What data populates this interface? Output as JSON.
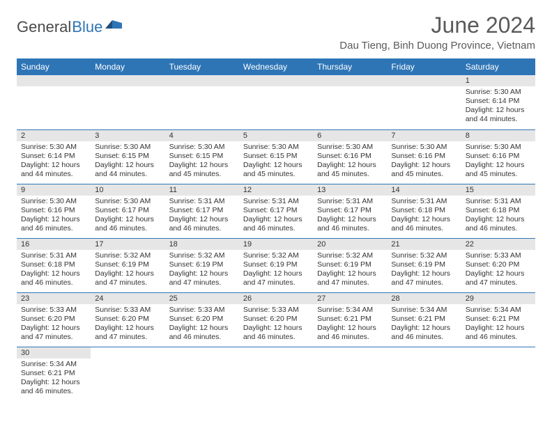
{
  "brand": {
    "part1": "General",
    "part2": "Blue"
  },
  "title": "June 2024",
  "location": "Dau Tieng, Binh Duong Province, Vietnam",
  "colors": {
    "header_bg": "#2e75b6",
    "header_text": "#ffffff",
    "daynum_bg": "#e6e6e6",
    "cell_border": "#2e75b6",
    "text": "#333333",
    "title_text": "#5a5a5a"
  },
  "weekdays": [
    "Sunday",
    "Monday",
    "Tuesday",
    "Wednesday",
    "Thursday",
    "Friday",
    "Saturday"
  ],
  "weeks": [
    [
      null,
      null,
      null,
      null,
      null,
      null,
      {
        "n": "1",
        "sr": "Sunrise: 5:30 AM",
        "ss": "Sunset: 6:14 PM",
        "dl": "Daylight: 12 hours and 44 minutes."
      }
    ],
    [
      {
        "n": "2",
        "sr": "Sunrise: 5:30 AM",
        "ss": "Sunset: 6:14 PM",
        "dl": "Daylight: 12 hours and 44 minutes."
      },
      {
        "n": "3",
        "sr": "Sunrise: 5:30 AM",
        "ss": "Sunset: 6:15 PM",
        "dl": "Daylight: 12 hours and 44 minutes."
      },
      {
        "n": "4",
        "sr": "Sunrise: 5:30 AM",
        "ss": "Sunset: 6:15 PM",
        "dl": "Daylight: 12 hours and 45 minutes."
      },
      {
        "n": "5",
        "sr": "Sunrise: 5:30 AM",
        "ss": "Sunset: 6:15 PM",
        "dl": "Daylight: 12 hours and 45 minutes."
      },
      {
        "n": "6",
        "sr": "Sunrise: 5:30 AM",
        "ss": "Sunset: 6:16 PM",
        "dl": "Daylight: 12 hours and 45 minutes."
      },
      {
        "n": "7",
        "sr": "Sunrise: 5:30 AM",
        "ss": "Sunset: 6:16 PM",
        "dl": "Daylight: 12 hours and 45 minutes."
      },
      {
        "n": "8",
        "sr": "Sunrise: 5:30 AM",
        "ss": "Sunset: 6:16 PM",
        "dl": "Daylight: 12 hours and 45 minutes."
      }
    ],
    [
      {
        "n": "9",
        "sr": "Sunrise: 5:30 AM",
        "ss": "Sunset: 6:16 PM",
        "dl": "Daylight: 12 hours and 46 minutes."
      },
      {
        "n": "10",
        "sr": "Sunrise: 5:30 AM",
        "ss": "Sunset: 6:17 PM",
        "dl": "Daylight: 12 hours and 46 minutes."
      },
      {
        "n": "11",
        "sr": "Sunrise: 5:31 AM",
        "ss": "Sunset: 6:17 PM",
        "dl": "Daylight: 12 hours and 46 minutes."
      },
      {
        "n": "12",
        "sr": "Sunrise: 5:31 AM",
        "ss": "Sunset: 6:17 PM",
        "dl": "Daylight: 12 hours and 46 minutes."
      },
      {
        "n": "13",
        "sr": "Sunrise: 5:31 AM",
        "ss": "Sunset: 6:17 PM",
        "dl": "Daylight: 12 hours and 46 minutes."
      },
      {
        "n": "14",
        "sr": "Sunrise: 5:31 AM",
        "ss": "Sunset: 6:18 PM",
        "dl": "Daylight: 12 hours and 46 minutes."
      },
      {
        "n": "15",
        "sr": "Sunrise: 5:31 AM",
        "ss": "Sunset: 6:18 PM",
        "dl": "Daylight: 12 hours and 46 minutes."
      }
    ],
    [
      {
        "n": "16",
        "sr": "Sunrise: 5:31 AM",
        "ss": "Sunset: 6:18 PM",
        "dl": "Daylight: 12 hours and 46 minutes."
      },
      {
        "n": "17",
        "sr": "Sunrise: 5:32 AM",
        "ss": "Sunset: 6:19 PM",
        "dl": "Daylight: 12 hours and 47 minutes."
      },
      {
        "n": "18",
        "sr": "Sunrise: 5:32 AM",
        "ss": "Sunset: 6:19 PM",
        "dl": "Daylight: 12 hours and 47 minutes."
      },
      {
        "n": "19",
        "sr": "Sunrise: 5:32 AM",
        "ss": "Sunset: 6:19 PM",
        "dl": "Daylight: 12 hours and 47 minutes."
      },
      {
        "n": "20",
        "sr": "Sunrise: 5:32 AM",
        "ss": "Sunset: 6:19 PM",
        "dl": "Daylight: 12 hours and 47 minutes."
      },
      {
        "n": "21",
        "sr": "Sunrise: 5:32 AM",
        "ss": "Sunset: 6:19 PM",
        "dl": "Daylight: 12 hours and 47 minutes."
      },
      {
        "n": "22",
        "sr": "Sunrise: 5:33 AM",
        "ss": "Sunset: 6:20 PM",
        "dl": "Daylight: 12 hours and 47 minutes."
      }
    ],
    [
      {
        "n": "23",
        "sr": "Sunrise: 5:33 AM",
        "ss": "Sunset: 6:20 PM",
        "dl": "Daylight: 12 hours and 47 minutes."
      },
      {
        "n": "24",
        "sr": "Sunrise: 5:33 AM",
        "ss": "Sunset: 6:20 PM",
        "dl": "Daylight: 12 hours and 47 minutes."
      },
      {
        "n": "25",
        "sr": "Sunrise: 5:33 AM",
        "ss": "Sunset: 6:20 PM",
        "dl": "Daylight: 12 hours and 46 minutes."
      },
      {
        "n": "26",
        "sr": "Sunrise: 5:33 AM",
        "ss": "Sunset: 6:20 PM",
        "dl": "Daylight: 12 hours and 46 minutes."
      },
      {
        "n": "27",
        "sr": "Sunrise: 5:34 AM",
        "ss": "Sunset: 6:21 PM",
        "dl": "Daylight: 12 hours and 46 minutes."
      },
      {
        "n": "28",
        "sr": "Sunrise: 5:34 AM",
        "ss": "Sunset: 6:21 PM",
        "dl": "Daylight: 12 hours and 46 minutes."
      },
      {
        "n": "29",
        "sr": "Sunrise: 5:34 AM",
        "ss": "Sunset: 6:21 PM",
        "dl": "Daylight: 12 hours and 46 minutes."
      }
    ],
    [
      {
        "n": "30",
        "sr": "Sunrise: 5:34 AM",
        "ss": "Sunset: 6:21 PM",
        "dl": "Daylight: 12 hours and 46 minutes."
      },
      null,
      null,
      null,
      null,
      null,
      null
    ]
  ]
}
